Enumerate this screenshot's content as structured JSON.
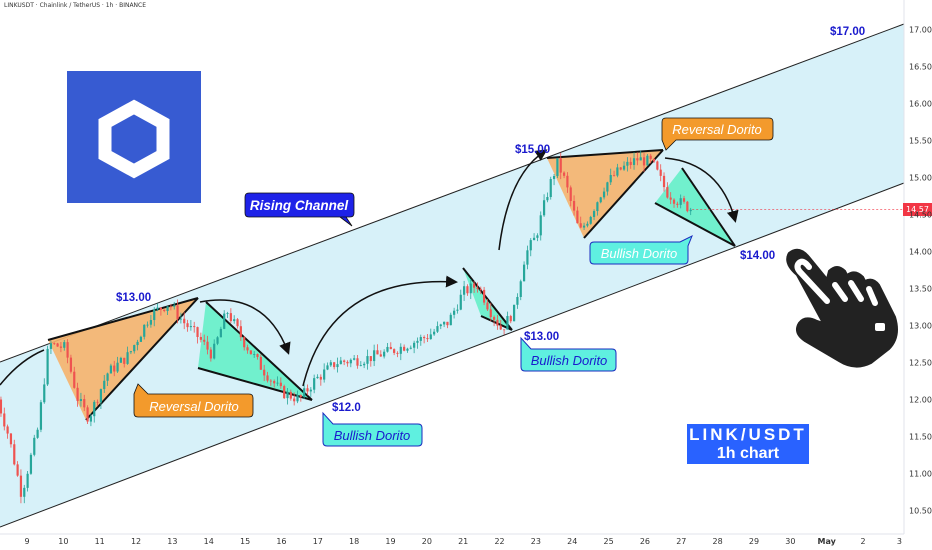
{
  "header": {
    "text": "LINKUSDT · Chainlink / TetherUS · 1h · BINANCE"
  },
  "chart_data": {
    "type": "candlestick",
    "symbol": "LINK/USDT",
    "timeframe": "1h",
    "exchange": "BINANCE",
    "ylim": [
      10.3,
      17.15
    ],
    "y_ticks": [
      10.5,
      11.0,
      11.5,
      12.0,
      12.5,
      13.0,
      13.5,
      14.0,
      14.5,
      15.0,
      15.5,
      16.0,
      16.5,
      17.0
    ],
    "y_tick_labels": [
      "10.50",
      "11.00",
      "11.50",
      "12.00",
      "12.50",
      "13.00",
      "13.50",
      "14.00",
      "14.50",
      "15.00",
      "15.50",
      "16.00",
      "16.50",
      "17.00"
    ],
    "x_ticks": [
      "9",
      "10",
      "11",
      "12",
      "13",
      "14",
      "15",
      "16",
      "17",
      "18",
      "19",
      "20",
      "21",
      "22",
      "23",
      "24",
      "25",
      "26",
      "27",
      "28",
      "29",
      "30",
      "May",
      "2",
      "3"
    ],
    "x_range": [
      8.1,
      33.3
    ],
    "last_price": "14.57",
    "price_path": [
      [
        8.1,
        12.15
      ],
      [
        8.5,
        11.5
      ],
      [
        8.85,
        10.72
      ],
      [
        9.3,
        11.6
      ],
      [
        9.6,
        12.75
      ],
      [
        10.05,
        12.7
      ],
      [
        10.4,
        12.0
      ],
      [
        10.7,
        11.75
      ],
      [
        11.2,
        12.35
      ],
      [
        11.8,
        12.6
      ],
      [
        12.4,
        13.15
      ],
      [
        12.9,
        13.3
      ],
      [
        13.3,
        13.05
      ],
      [
        13.7,
        12.85
      ],
      [
        14.1,
        12.6
      ],
      [
        14.5,
        13.2
      ],
      [
        15.0,
        12.75
      ],
      [
        15.5,
        12.4
      ],
      [
        16.0,
        12.1
      ],
      [
        16.5,
        12.0
      ],
      [
        16.9,
        12.25
      ],
      [
        17.5,
        12.5
      ],
      [
        18.3,
        12.55
      ],
      [
        19.0,
        12.65
      ],
      [
        20.0,
        12.85
      ],
      [
        20.6,
        13.05
      ],
      [
        21.0,
        13.45
      ],
      [
        21.4,
        13.55
      ],
      [
        21.75,
        13.2
      ],
      [
        22.05,
        12.95
      ],
      [
        22.4,
        13.2
      ],
      [
        22.7,
        13.95
      ],
      [
        23.0,
        14.2
      ],
      [
        23.35,
        14.85
      ],
      [
        23.6,
        15.2
      ],
      [
        23.8,
        14.95
      ],
      [
        24.2,
        14.25
      ],
      [
        24.5,
        14.5
      ],
      [
        24.9,
        14.9
      ],
      [
        25.3,
        15.1
      ],
      [
        25.8,
        15.25
      ],
      [
        26.2,
        15.2
      ],
      [
        26.6,
        14.8
      ],
      [
        27.0,
        14.65
      ],
      [
        27.3,
        14.57
      ]
    ],
    "annotations": [
      {
        "text": "Rising Channel",
        "kind": "callout"
      },
      {
        "text": "$13.00",
        "kind": "price"
      },
      {
        "text": "Reversal Dorito",
        "kind": "callout"
      },
      {
        "text": "$12.0",
        "kind": "price"
      },
      {
        "text": "Bullish Dorito",
        "kind": "callout"
      },
      {
        "text": "$13.00",
        "kind": "price"
      },
      {
        "text": "Bullish Dorito",
        "kind": "callout"
      },
      {
        "text": "$15.00",
        "kind": "price"
      },
      {
        "text": "Reversal Dorito",
        "kind": "callout"
      },
      {
        "text": "Bullish Dorito",
        "kind": "callout"
      },
      {
        "text": "$14.00",
        "kind": "price"
      },
      {
        "text": "$17.00",
        "kind": "price"
      }
    ],
    "grid": false,
    "legend": "none"
  },
  "labels": {
    "rising_channel": "Rising Channel",
    "p13a": "$13.00",
    "reversal1": "Reversal Dorito",
    "p12": "$12.0",
    "bullish1": "Bullish Dorito",
    "p13b": "$13.00",
    "bullish2": "Bullish Dorito",
    "p15": "$15.00",
    "reversal2": "Reversal Dorito",
    "bullish3": "Bullish Dorito",
    "p14": "$14.00",
    "p17": "$17.00"
  },
  "pair_box": {
    "line1": "LINK/USDT",
    "line2": "1h chart"
  },
  "colors": {
    "channel_fill": "#d7f1f9",
    "reversal_fill": "#f6b26b",
    "bullish_fill": "#66efc8",
    "reversal_callout": "#f39a2c",
    "bullish_callout": "#5ff0e0",
    "channel_callout": "#1e22e8",
    "price_text": "#1a1acd",
    "up_candle": "#26a69a",
    "down_candle": "#ef5350",
    "logo_blue": "#375bd2",
    "pair_box_blue": "#2962ff",
    "price_tag": "#f23645"
  },
  "icons": {
    "logo": "chainlink-hexagon-icon",
    "pointer": "pointing-hand-icon"
  }
}
